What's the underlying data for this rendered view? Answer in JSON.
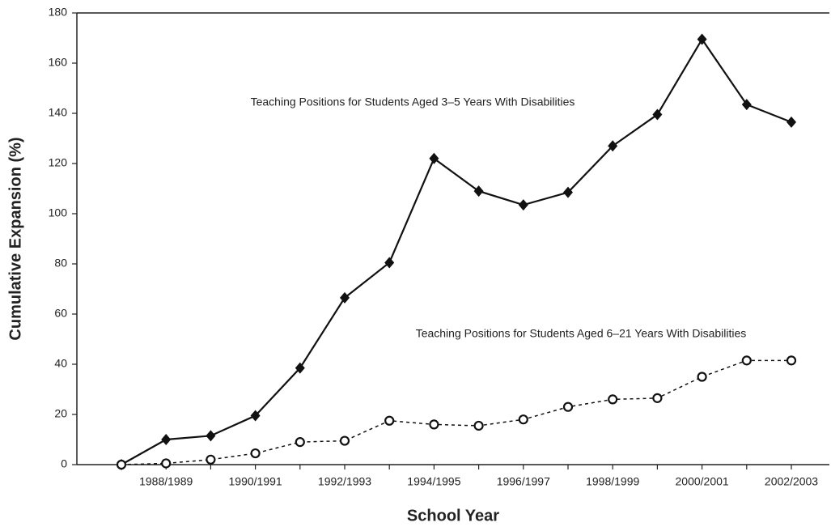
{
  "chart_data": {
    "type": "line",
    "x_label": "School Year",
    "y_label": "Cumulative Expansion (%)",
    "categories": [
      null,
      "1988/1989",
      null,
      "1990/1991",
      null,
      "1992/1993",
      null,
      "1994/1995",
      null,
      "1996/1997",
      null,
      "1998/1999",
      null,
      "2000/2001",
      null,
      "2002/2003"
    ],
    "series": [
      {
        "name": "Teaching Positions for Students Aged 3–5 Years With Disabilities",
        "color": "#111111",
        "marker": "diamond",
        "linestyle": "solid",
        "values": [
          0,
          10,
          11.5,
          19.5,
          38.5,
          66.5,
          80.5,
          122,
          109,
          103.5,
          108.5,
          127,
          139.5,
          169.5,
          143.5,
          136.5
        ]
      },
      {
        "name": "Teaching Positions for Students Aged 6–21 Years With Disabilities",
        "color": "#111111",
        "marker": "circle",
        "linestyle": "dashed",
        "values": [
          0,
          0.5,
          2,
          4.5,
          9,
          9.5,
          17.5,
          16,
          15.5,
          18,
          23,
          26,
          26.5,
          35,
          41.5,
          41.5
        ]
      }
    ],
    "ylim": [
      0,
      180
    ],
    "yticks": [
      0,
      20,
      40,
      60,
      80,
      100,
      120,
      140,
      160,
      180
    ]
  }
}
